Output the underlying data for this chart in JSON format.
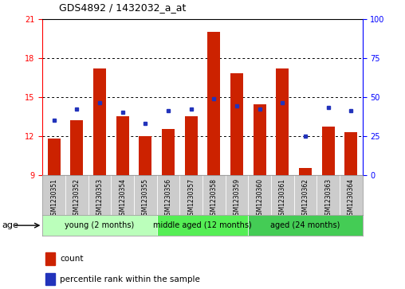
{
  "title": "GDS4892 / 1432032_a_at",
  "samples": [
    "GSM1230351",
    "GSM1230352",
    "GSM1230353",
    "GSM1230354",
    "GSM1230355",
    "GSM1230356",
    "GSM1230357",
    "GSM1230358",
    "GSM1230359",
    "GSM1230360",
    "GSM1230361",
    "GSM1230362",
    "GSM1230363",
    "GSM1230364"
  ],
  "count_values": [
    11.8,
    13.2,
    17.2,
    13.5,
    12.0,
    12.5,
    13.5,
    20.0,
    16.8,
    14.4,
    17.2,
    9.5,
    12.7,
    12.3
  ],
  "percentile_values": [
    35,
    42,
    46,
    40,
    33,
    41,
    42,
    49,
    44,
    42,
    46,
    25,
    43,
    41
  ],
  "ylim_left": [
    9,
    21
  ],
  "ylim_right": [
    0,
    100
  ],
  "yticks_left": [
    9,
    12,
    15,
    18,
    21
  ],
  "yticks_right": [
    0,
    25,
    50,
    75,
    100
  ],
  "bar_color": "#cc2200",
  "dot_color": "#2233bb",
  "groups": [
    {
      "label": "young (2 months)",
      "start": 0,
      "end": 5,
      "color": "#bbffbb"
    },
    {
      "label": "middle aged (12 months)",
      "start": 5,
      "end": 9,
      "color": "#55ee55"
    },
    {
      "label": "aged (24 months)",
      "start": 9,
      "end": 14,
      "color": "#44cc55"
    }
  ],
  "age_label": "age",
  "legend_count": "count",
  "legend_percentile": "percentile rank within the sample",
  "bar_width": 0.55,
  "baseline": 9,
  "grid_lines": [
    12,
    15,
    18
  ],
  "label_box_color": "#cccccc",
  "title_fontsize": 9,
  "tick_fontsize": 7,
  "sample_fontsize": 5.5,
  "group_fontsize": 7,
  "legend_fontsize": 7.5
}
